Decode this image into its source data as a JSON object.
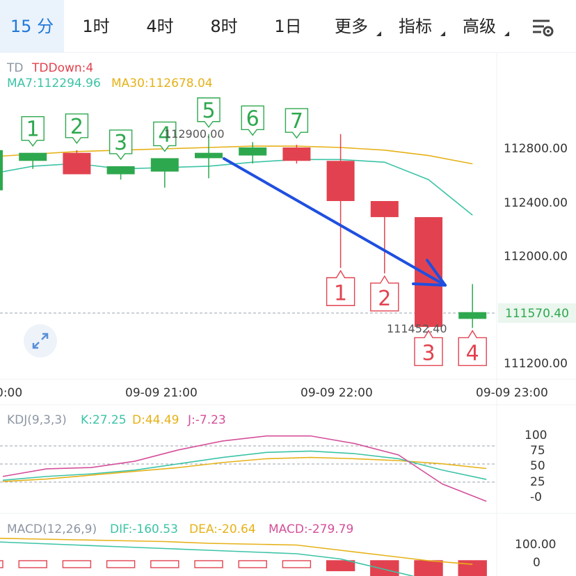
{
  "tabs": [
    {
      "label": "15 分",
      "active": true
    },
    {
      "label": "1时",
      "active": false
    },
    {
      "label": "4时",
      "active": false
    },
    {
      "label": "8时",
      "active": false
    },
    {
      "label": "1日",
      "active": false
    },
    {
      "label": "更多",
      "active": false,
      "dropdown": true
    },
    {
      "label": "指标",
      "active": false,
      "dropdown": true
    },
    {
      "label": "高级",
      "active": false,
      "dropdown": true
    }
  ],
  "settings_icon": "chart-settings-icon",
  "main_panel": {
    "td_prefix": "TD",
    "td_value": "TDDown:4",
    "ma7": "MA7:112294.96",
    "ma30": "MA30:112678.04",
    "high_label": "112900.00",
    "low_label": "111452.40",
    "current_price": "111570.40",
    "y_ticks": [
      "112800.00",
      "112400.00",
      "112000.00",
      "111200.00"
    ],
    "x_ticks": [
      "0:00",
      "09-09 21:00",
      "09-09 22:00",
      "09-09 23:00"
    ]
  },
  "kdj_panel": {
    "title": "KDJ(9,3,3)",
    "k": "K:27.25",
    "d": "D:44.49",
    "j": "J:-7.23",
    "y_ticks": [
      "100",
      "75",
      "50",
      "25",
      "-0"
    ]
  },
  "macd_panel": {
    "title": "MACD(12,26,9)",
    "dif": "DIF:-160.53",
    "dea": "DEA:-20.64",
    "macd": "MACD:-279.79",
    "y_ticks": [
      "100.00",
      "0"
    ]
  },
  "colors": {
    "up": "#2ea84e",
    "down": "#e2424f",
    "ma7": "#3cc3a6",
    "ma30": "#e6b117",
    "j_line": "#d44f9a",
    "accent": "#1e78d8",
    "arrow": "#1f4fe0"
  },
  "chart_data": {
    "type": "candlestick",
    "candles": [
      {
        "open": 112480,
        "high": 112800,
        "low": 112380,
        "close": 112780
      },
      {
        "open": 112700,
        "high": 112760,
        "low": 112640,
        "close": 112760,
        "td": "1",
        "td_dir": "up"
      },
      {
        "open": 112760,
        "high": 112780,
        "low": 112600,
        "close": 112600,
        "td": "2",
        "td_dir": "up"
      },
      {
        "open": 112600,
        "high": 112660,
        "low": 112560,
        "close": 112660,
        "td": "3",
        "td_dir": "up"
      },
      {
        "open": 112620,
        "high": 112720,
        "low": 112500,
        "close": 112720,
        "td": "4",
        "td_dir": "up"
      },
      {
        "open": 112720,
        "high": 112900,
        "low": 112570,
        "close": 112760,
        "td": "5",
        "td_dir": "up"
      },
      {
        "open": 112740,
        "high": 112840,
        "low": 112680,
        "close": 112800,
        "td": "6",
        "td_dir": "up"
      },
      {
        "open": 112800,
        "high": 112820,
        "low": 112680,
        "close": 112700,
        "td": "7",
        "td_dir": "up"
      },
      {
        "open": 112700,
        "high": 112900,
        "low": 111900,
        "close": 112400,
        "td": "1",
        "td_dir": "down"
      },
      {
        "open": 112400,
        "high": 112400,
        "low": 111860,
        "close": 112280,
        "td": "2",
        "td_dir": "down"
      },
      {
        "open": 112280,
        "high": 112280,
        "low": 111452.4,
        "close": 111460,
        "td": "3",
        "td_dir": "down"
      },
      {
        "open": 111520,
        "high": 111780,
        "low": 111452.4,
        "close": 111570.4,
        "td": "4",
        "td_dir": "down"
      }
    ],
    "ma7": [
      112600,
      112660,
      112680,
      112640,
      112650,
      112660,
      112690,
      112710,
      112710,
      112690,
      112560,
      112294.96
    ],
    "ma30": [
      112730,
      112750,
      112770,
      112780,
      112790,
      112800,
      112810,
      112810,
      112800,
      112780,
      112740,
      112678.04
    ],
    "ylim": [
      111200,
      113000
    ],
    "kdj": {
      "k": [
        26,
        32,
        36,
        42,
        52,
        62,
        70,
        72,
        68,
        60,
        42,
        27.25
      ],
      "d": [
        24,
        28,
        34,
        40,
        46,
        54,
        60,
        62,
        60,
        57,
        52,
        44.49
      ],
      "j": [
        32,
        44,
        46,
        56,
        74,
        88,
        96,
        96,
        84,
        66,
        20,
        -7.23
      ],
      "ylim": [
        -10,
        110
      ]
    },
    "macd": {
      "hist": [
        -50,
        -50,
        -50,
        -50,
        -40,
        -30,
        -20,
        -20,
        -120,
        -180,
        -240,
        -279.79
      ],
      "dif": [
        110,
        100,
        90,
        80,
        70,
        60,
        50,
        40,
        10,
        -50,
        -110,
        -160.53
      ],
      "dea": [
        130,
        125,
        120,
        115,
        110,
        100,
        95,
        90,
        60,
        30,
        0,
        -20.64
      ]
    }
  }
}
